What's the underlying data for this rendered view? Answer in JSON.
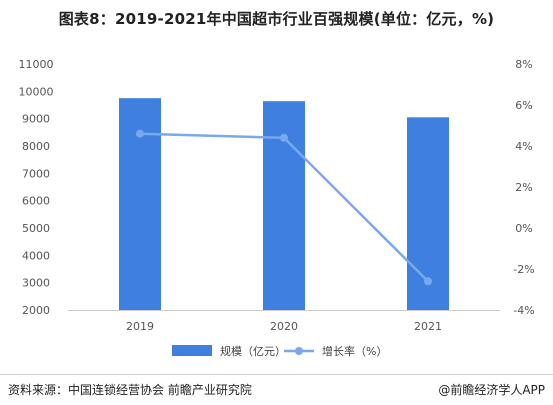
{
  "title": "图表8：2019-2021年中国超市行业百强规模(单位：亿元，%)",
  "source": "资料来源：中国连锁经营协会 前瞻产业研究院",
  "credit": "@前瞻经济学人APP",
  "colors": {
    "bar": "#3f7fdf",
    "line": "#79a8ec"
  },
  "chart_data": {
    "type": "bar",
    "categories": [
      "2019",
      "2020",
      "2021"
    ],
    "series": [
      {
        "name": "规模（亿元）",
        "type": "bar",
        "axis": "left",
        "values": [
          9750,
          9640,
          9050
        ]
      },
      {
        "name": "增长率（%）",
        "type": "line",
        "axis": "right",
        "values": [
          4.6,
          4.4,
          -2.6
        ]
      }
    ],
    "left_axis": {
      "ylim": [
        2000,
        11000
      ],
      "ticks": [
        "2000",
        "3000",
        "4000",
        "5000",
        "6000",
        "7000",
        "8000",
        "9000",
        "10000",
        "11000"
      ]
    },
    "right_axis": {
      "ylim": [
        -4,
        8
      ],
      "ticks": [
        "-4%",
        "-2%",
        "0%",
        "2%",
        "4%",
        "6%",
        "8%"
      ]
    },
    "legend_position": "bottom",
    "grid": false
  }
}
